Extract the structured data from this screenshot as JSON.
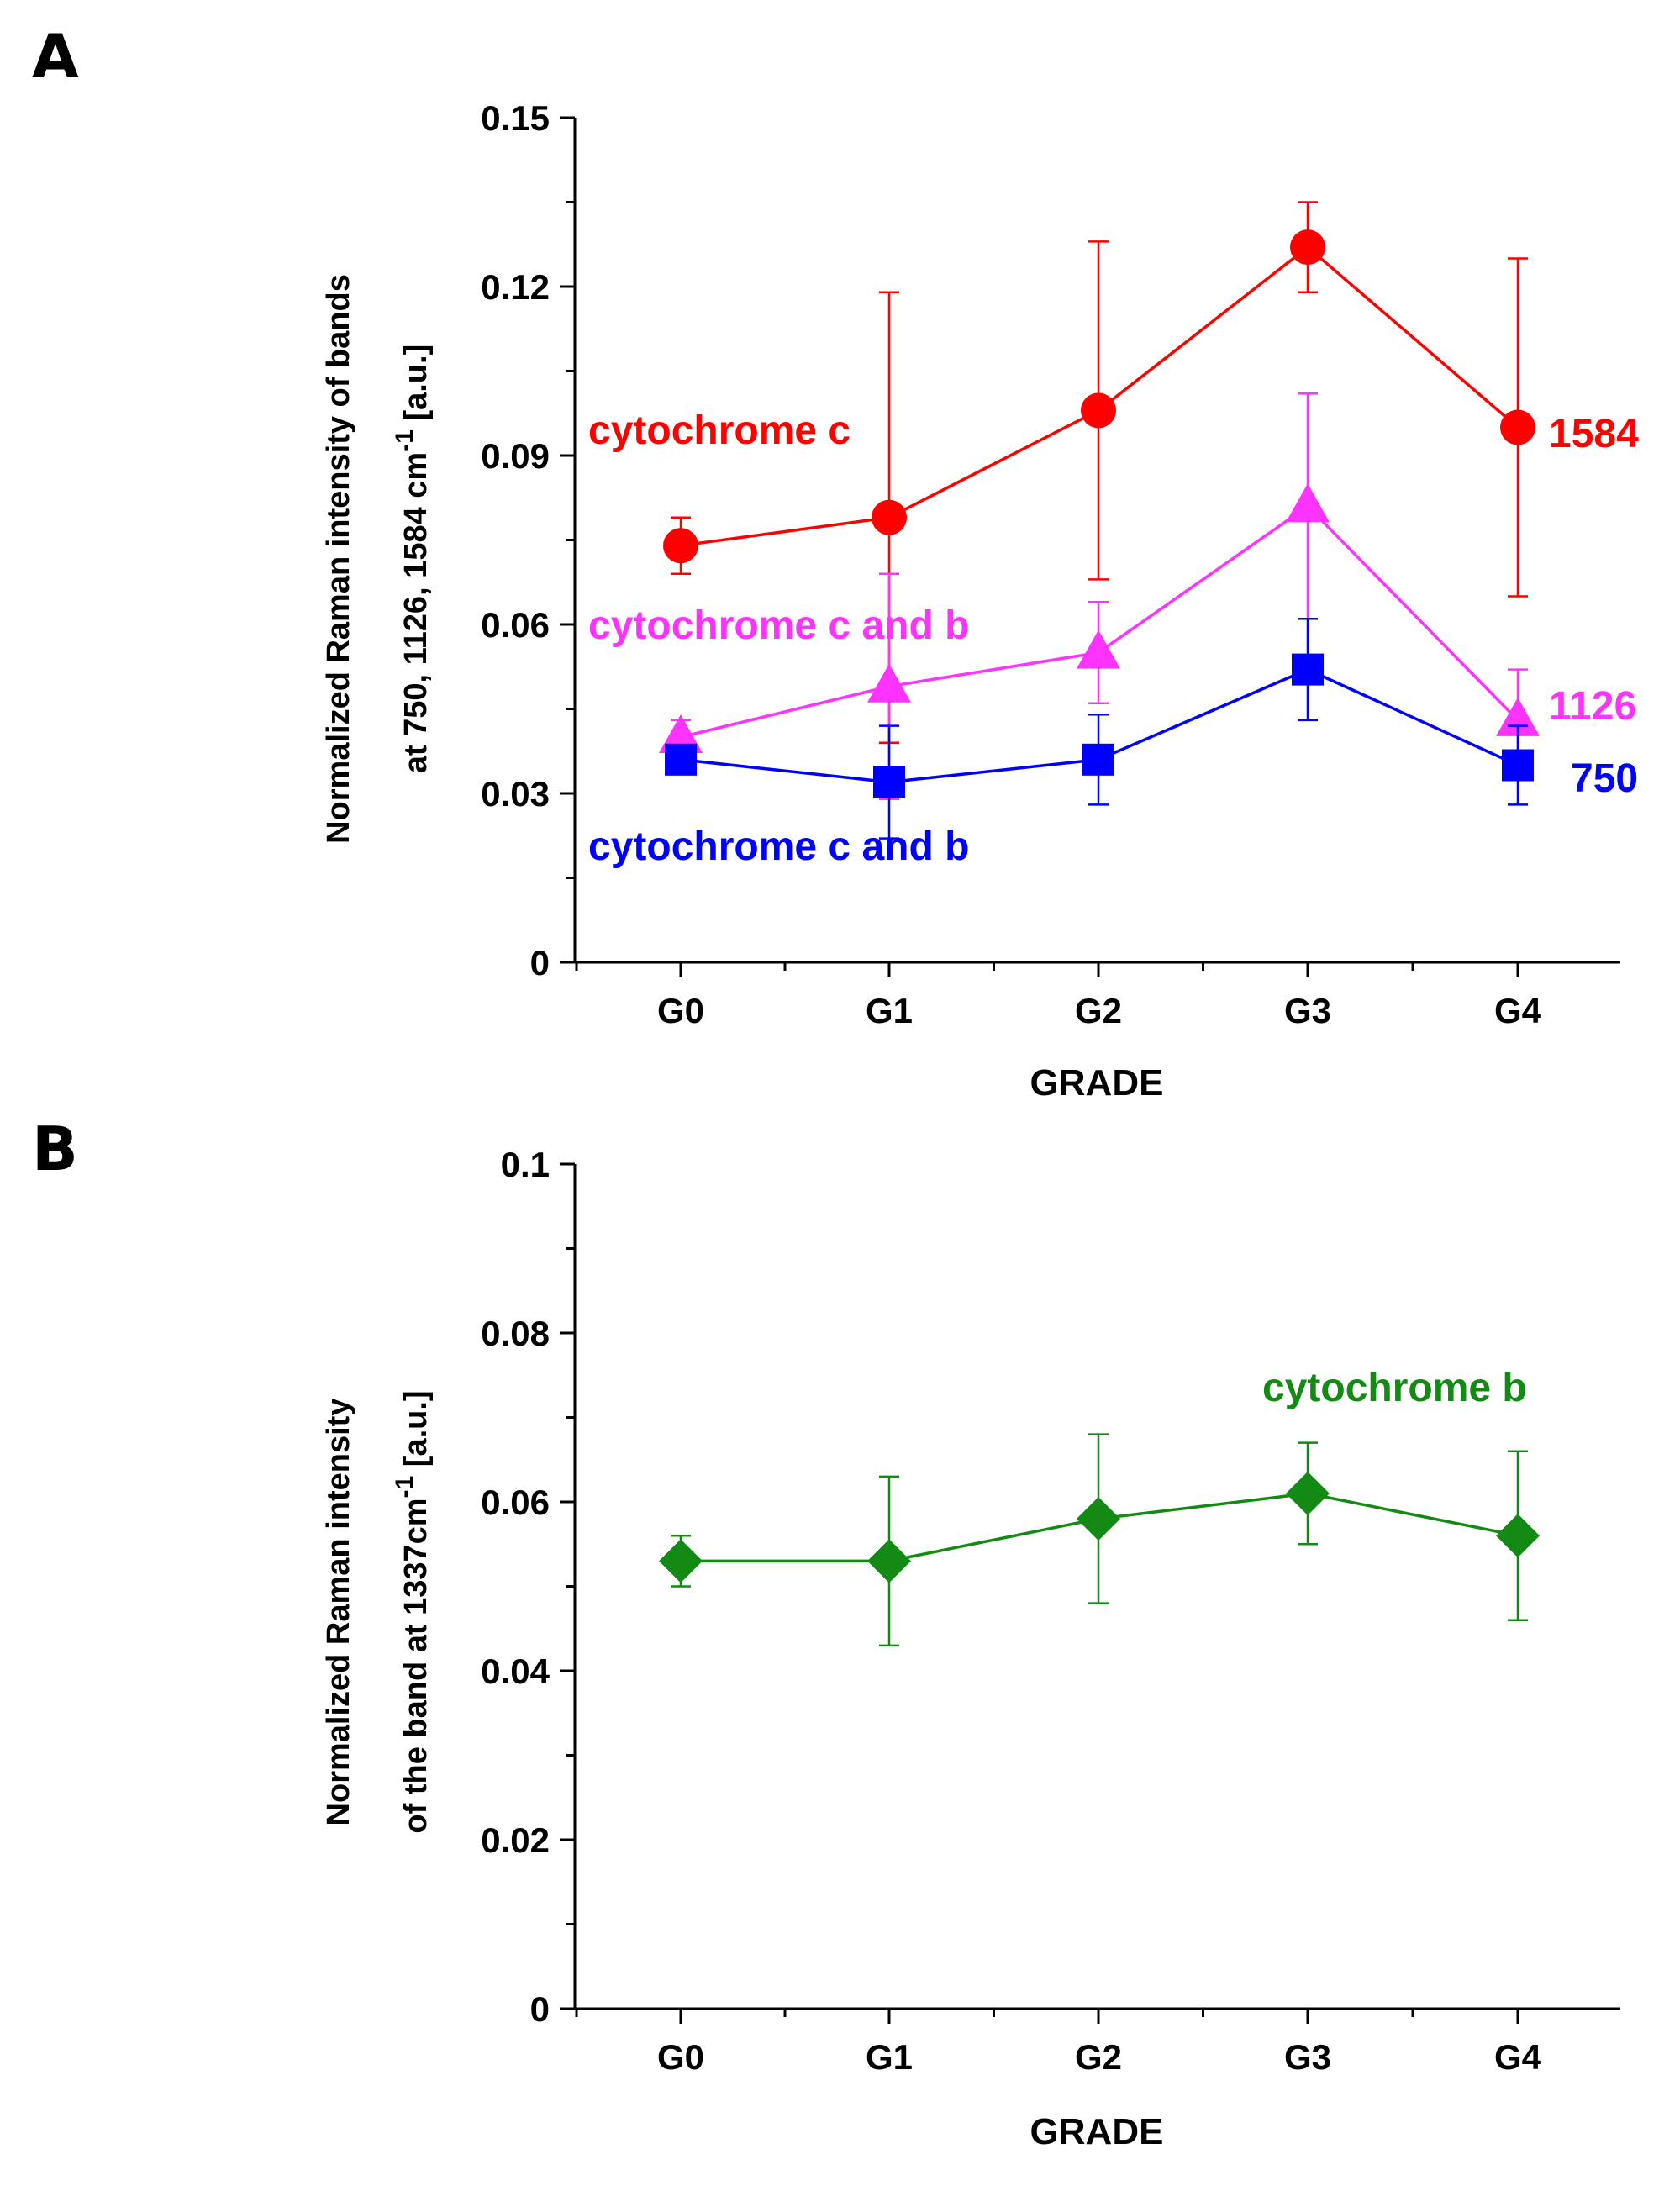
{
  "chart_data": [
    {
      "panel": "A",
      "type": "line",
      "categories": [
        "G0",
        "G1",
        "G2",
        "G3",
        "G4"
      ],
      "xlabel": "GRADE",
      "ylabel_line1": "Normalized Raman intensity of bands",
      "ylabel_line2_main": "at 750, 1126, 1584 cm",
      "ylabel_line2_sup": "-1",
      "ylabel_line2_end": " [a.u.]",
      "ylim": [
        0,
        0.15
      ],
      "yticks": [
        0,
        0.03,
        0.06,
        0.09,
        0.12,
        0.15
      ],
      "ytick_labels": [
        "0",
        "0.03",
        "0.06",
        "0.09",
        "0.12",
        "0.15"
      ],
      "series": [
        {
          "label": "1584",
          "annotation": "cytochrome c",
          "color": "#ff0000",
          "marker": "circle",
          "values": [
            0.074,
            0.079,
            0.098,
            0.127,
            0.095
          ],
          "error_low": [
            0.069,
            0.039,
            0.068,
            0.119,
            0.065
          ],
          "error_high": [
            0.079,
            0.119,
            0.128,
            0.135,
            0.125
          ]
        },
        {
          "label": "1126",
          "annotation": "cytochrome c and b",
          "color": "#ff33ff",
          "marker": "triangle",
          "values": [
            0.04,
            0.049,
            0.055,
            0.081,
            0.043
          ],
          "error_low": [
            0.037,
            0.029,
            0.046,
            0.061,
            0.034
          ],
          "error_high": [
            0.043,
            0.069,
            0.064,
            0.101,
            0.052
          ]
        },
        {
          "label": "750",
          "annotation": "cytochrome c and b",
          "color": "#0000ff",
          "marker": "square",
          "values": [
            0.036,
            0.032,
            0.036,
            0.052,
            0.035
          ],
          "error_low": [
            0.034,
            0.022,
            0.028,
            0.043,
            0.028
          ],
          "error_high": [
            0.038,
            0.042,
            0.044,
            0.061,
            0.042
          ]
        }
      ]
    },
    {
      "panel": "B",
      "type": "line",
      "categories": [
        "G0",
        "G1",
        "G2",
        "G3",
        "G4"
      ],
      "xlabel": "GRADE",
      "ylabel_line1": "Normalized Raman intensity",
      "ylabel_line2_main": "of the band at  1337cm",
      "ylabel_line2_sup": "-1",
      "ylabel_line2_end": " [a.u.]",
      "ylim": [
        0,
        0.1
      ],
      "yticks": [
        0,
        0.02,
        0.04,
        0.06,
        0.08,
        0.1
      ],
      "ytick_labels": [
        "0",
        "0.02",
        "0.04",
        "0.06",
        "0.08",
        "0.1"
      ],
      "series": [
        {
          "annotation": "cytochrome b",
          "color": "#138a13",
          "marker": "diamond",
          "values": [
            0.053,
            0.053,
            0.058,
            0.061,
            0.056
          ],
          "error_low": [
            0.05,
            0.043,
            0.048,
            0.055,
            0.046
          ],
          "error_high": [
            0.056,
            0.063,
            0.068,
            0.067,
            0.066
          ]
        }
      ]
    }
  ]
}
